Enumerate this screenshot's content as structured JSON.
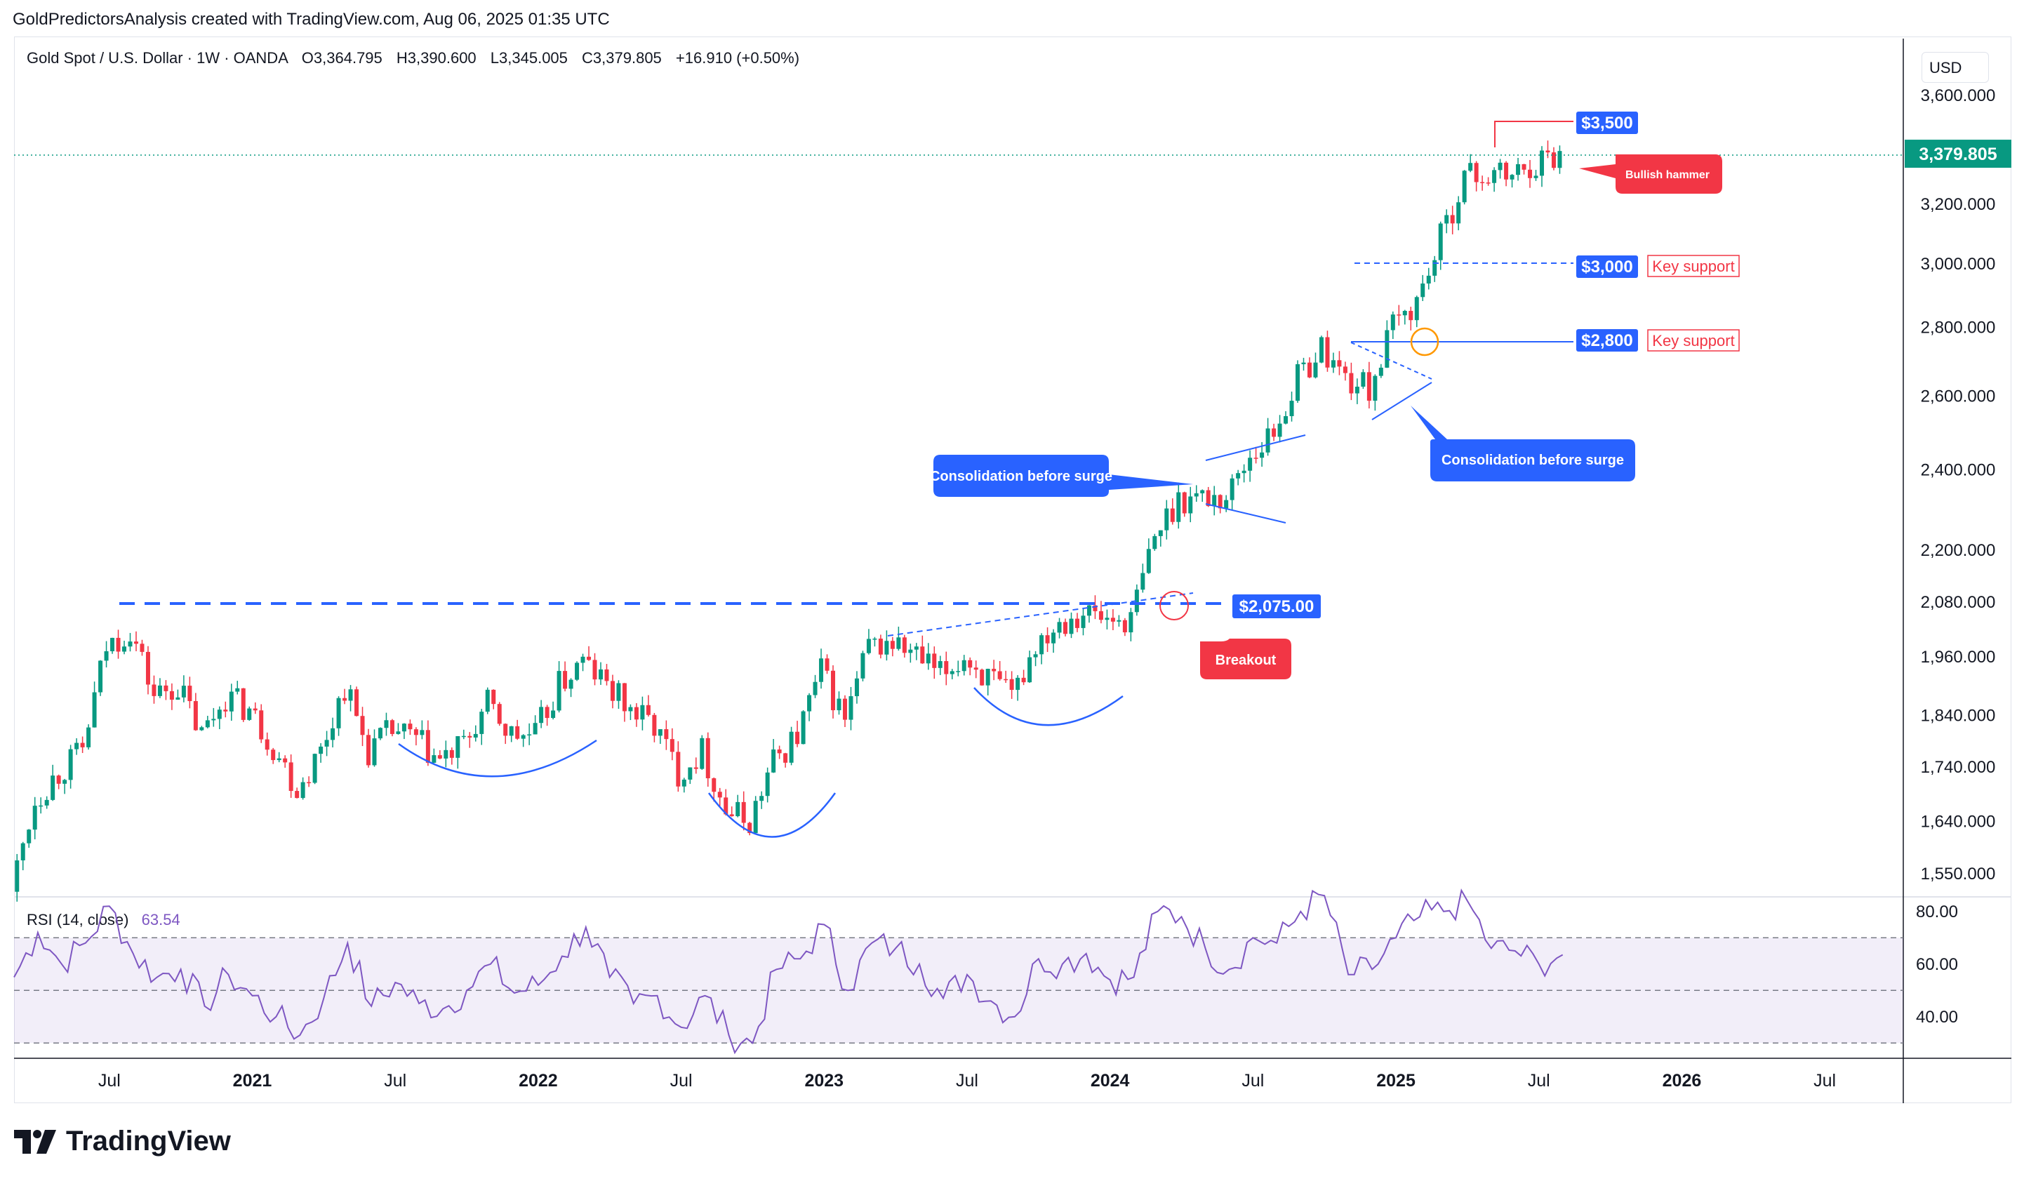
{
  "header": {
    "created_by": "GoldPredictorsAnalysis created with TradingView.com, Aug 06, 2025 01:35 UTC"
  },
  "legend": {
    "symbol": "Gold Spot / U.S. Dollar · 1W · OANDA",
    "open": "O3,364.795",
    "high": "H3,390.600",
    "low": "L3,345.005",
    "close": "C3,379.805",
    "change": "+16.910 (+0.50%)"
  },
  "currency_button": "USD",
  "rsi": {
    "label": "RSI (14, close)",
    "value": "63.54"
  },
  "brand": {
    "name": "TradingView"
  },
  "colors": {
    "up": "#089981",
    "down": "#f23645",
    "rsi_line": "#7e57c2",
    "annotation_blue": "#2962ff",
    "annotation_red": "#f23645",
    "price_badge": "#089981"
  },
  "chart_data": {
    "type": "candlestick",
    "title": "Gold Spot / U.S. Dollar · 1W · OANDA",
    "y_axis": {
      "scale": "log",
      "ticks": [
        1550,
        1640,
        1740,
        1840,
        1960,
        2080,
        2200,
        2400,
        2600,
        2800,
        3000,
        3200,
        3600
      ],
      "tick_labels": [
        "1,550.000",
        "1,640.000",
        "1,740.000",
        "1,840.000",
        "1,960.000",
        "2,080.000",
        "2,200.000",
        "2,400.000",
        "2,600.000",
        "2,800.000",
        "3,000.000",
        "3,200.000",
        "3,600.000"
      ],
      "last_price_label": "3,379.805",
      "last_price": 3379.805
    },
    "x_axis": {
      "range": [
        "2020-03",
        "2026-10"
      ],
      "ticks": [
        {
          "date": "2020-07",
          "label": "Jul",
          "bold": false
        },
        {
          "date": "2021-01",
          "label": "2021",
          "bold": true
        },
        {
          "date": "2021-07",
          "label": "Jul",
          "bold": false
        },
        {
          "date": "2022-01",
          "label": "2022",
          "bold": true
        },
        {
          "date": "2022-07",
          "label": "Jul",
          "bold": false
        },
        {
          "date": "2023-01",
          "label": "2023",
          "bold": true
        },
        {
          "date": "2023-07",
          "label": "Jul",
          "bold": false
        },
        {
          "date": "2024-01",
          "label": "2024",
          "bold": true
        },
        {
          "date": "2024-07",
          "label": "Jul",
          "bold": false
        },
        {
          "date": "2025-01",
          "label": "2025",
          "bold": true
        },
        {
          "date": "2025-07",
          "label": "Jul",
          "bold": false
        },
        {
          "date": "2026-01",
          "label": "2026",
          "bold": true
        },
        {
          "date": "2026-07",
          "label": "Jul",
          "bold": false
        }
      ]
    },
    "price_path": [
      [
        "2020-03",
        1520
      ],
      [
        "2020-04",
        1680
      ],
      [
        "2020-05",
        1730
      ],
      [
        "2020-06",
        1770
      ],
      [
        "2020-07",
        1980
      ],
      [
        "2020-08",
        2020
      ],
      [
        "2020-09",
        1880
      ],
      [
        "2020-10",
        1900
      ],
      [
        "2020-11",
        1800
      ],
      [
        "2020-12",
        1880
      ],
      [
        "2021-01",
        1850
      ],
      [
        "2021-02",
        1780
      ],
      [
        "2021-03",
        1700
      ],
      [
        "2021-04",
        1770
      ],
      [
        "2021-05",
        1900
      ],
      [
        "2021-06",
        1770
      ],
      [
        "2021-07",
        1810
      ],
      [
        "2021-08",
        1790
      ],
      [
        "2021-09",
        1750
      ],
      [
        "2021-10",
        1780
      ],
      [
        "2021-11",
        1860
      ],
      [
        "2021-12",
        1800
      ],
      [
        "2022-01",
        1800
      ],
      [
        "2022-02",
        1900
      ],
      [
        "2022-03",
        1950
      ],
      [
        "2022-04",
        1900
      ],
      [
        "2022-05",
        1850
      ],
      [
        "2022-06",
        1820
      ],
      [
        "2022-07",
        1730
      ],
      [
        "2022-08",
        1770
      ],
      [
        "2022-09",
        1660
      ],
      [
        "2022-10",
        1640
      ],
      [
        "2022-11",
        1750
      ],
      [
        "2022-12",
        1800
      ],
      [
        "2023-01",
        1930
      ],
      [
        "2023-02",
        1830
      ],
      [
        "2023-03",
        1980
      ],
      [
        "2023-04",
        1990
      ],
      [
        "2023-05",
        1960
      ],
      [
        "2023-06",
        1920
      ],
      [
        "2023-07",
        1960
      ],
      [
        "2023-08",
        1915
      ],
      [
        "2023-09",
        1870
      ],
      [
        "2023-10",
        1990
      ],
      [
        "2023-11",
        2040
      ],
      [
        "2023-12",
        2060
      ],
      [
        "2024-01",
        2040
      ],
      [
        "2024-02",
        2040
      ],
      [
        "2024-03",
        2230
      ],
      [
        "2024-04",
        2330
      ],
      [
        "2024-05",
        2330
      ],
      [
        "2024-06",
        2330
      ],
      [
        "2024-07",
        2440
      ],
      [
        "2024-08",
        2500
      ],
      [
        "2024-09",
        2650
      ],
      [
        "2024-10",
        2740
      ],
      [
        "2024-11",
        2650
      ],
      [
        "2024-12",
        2620
      ],
      [
        "2025-01",
        2800
      ],
      [
        "2025-02",
        2880
      ],
      [
        "2025-03",
        3080
      ],
      [
        "2025-04",
        3300
      ],
      [
        "2025-05",
        3300
      ],
      [
        "2025-06",
        3300
      ],
      [
        "2025-07",
        3350
      ],
      [
        "2025-08",
        3379.805
      ]
    ],
    "rsi_axis": {
      "ticks": [
        40,
        60,
        80
      ],
      "tick_labels": [
        "40.00",
        "60.00",
        "80.00"
      ],
      "bands": [
        30,
        50,
        70
      ]
    },
    "rsi_path": [
      [
        "2020-03",
        55
      ],
      [
        "2020-04",
        72
      ],
      [
        "2020-05",
        60
      ],
      [
        "2020-06",
        68
      ],
      [
        "2020-07",
        82
      ],
      [
        "2020-08",
        64
      ],
      [
        "2020-09",
        55
      ],
      [
        "2020-10",
        58
      ],
      [
        "2020-11",
        44
      ],
      [
        "2020-12",
        56
      ],
      [
        "2021-01",
        48
      ],
      [
        "2021-02",
        40
      ],
      [
        "2021-03",
        33
      ],
      [
        "2021-04",
        47
      ],
      [
        "2021-05",
        68
      ],
      [
        "2021-06",
        44
      ],
      [
        "2021-07",
        53
      ],
      [
        "2021-08",
        45
      ],
      [
        "2021-09",
        43
      ],
      [
        "2021-10",
        50
      ],
      [
        "2021-11",
        60
      ],
      [
        "2021-12",
        49
      ],
      [
        "2022-01",
        52
      ],
      [
        "2022-02",
        63
      ],
      [
        "2022-03",
        74
      ],
      [
        "2022-04",
        55
      ],
      [
        "2022-05",
        45
      ],
      [
        "2022-06",
        48
      ],
      [
        "2022-07",
        36
      ],
      [
        "2022-08",
        48
      ],
      [
        "2022-09",
        33
      ],
      [
        "2022-10",
        30
      ],
      [
        "2022-11",
        58
      ],
      [
        "2022-12",
        62
      ],
      [
        "2023-01",
        75
      ],
      [
        "2023-02",
        50
      ],
      [
        "2023-03",
        68
      ],
      [
        "2023-04",
        66
      ],
      [
        "2023-05",
        60
      ],
      [
        "2023-06",
        47
      ],
      [
        "2023-07",
        56
      ],
      [
        "2023-08",
        46
      ],
      [
        "2023-09",
        40
      ],
      [
        "2023-10",
        62
      ],
      [
        "2023-11",
        60
      ],
      [
        "2023-12",
        64
      ],
      [
        "2024-01",
        54
      ],
      [
        "2024-02",
        55
      ],
      [
        "2024-03",
        80
      ],
      [
        "2024-04",
        78
      ],
      [
        "2024-05",
        66
      ],
      [
        "2024-06",
        58
      ],
      [
        "2024-07",
        70
      ],
      [
        "2024-08",
        68
      ],
      [
        "2024-09",
        80
      ],
      [
        "2024-10",
        86
      ],
      [
        "2024-11",
        56
      ],
      [
        "2024-12",
        58
      ],
      [
        "2025-01",
        70
      ],
      [
        "2025-02",
        78
      ],
      [
        "2025-03",
        80
      ],
      [
        "2025-04",
        84
      ],
      [
        "2025-05",
        66
      ],
      [
        "2025-06",
        65
      ],
      [
        "2025-07",
        60
      ],
      [
        "2025-08",
        63.54
      ]
    ],
    "annotations": {
      "breakout_level": "$2,075.00",
      "level_2800": "$2,800",
      "level_3000": "$3,000",
      "level_3500": "$3,500",
      "key_support_1": "Key support",
      "key_support_2": "Key support",
      "callout_consolidation_1": "Consolidation before surge",
      "callout_consolidation_2": "Consolidation before surge",
      "callout_breakout": "Breakout",
      "callout_bullish_hammer": "Bullish hammer"
    }
  }
}
